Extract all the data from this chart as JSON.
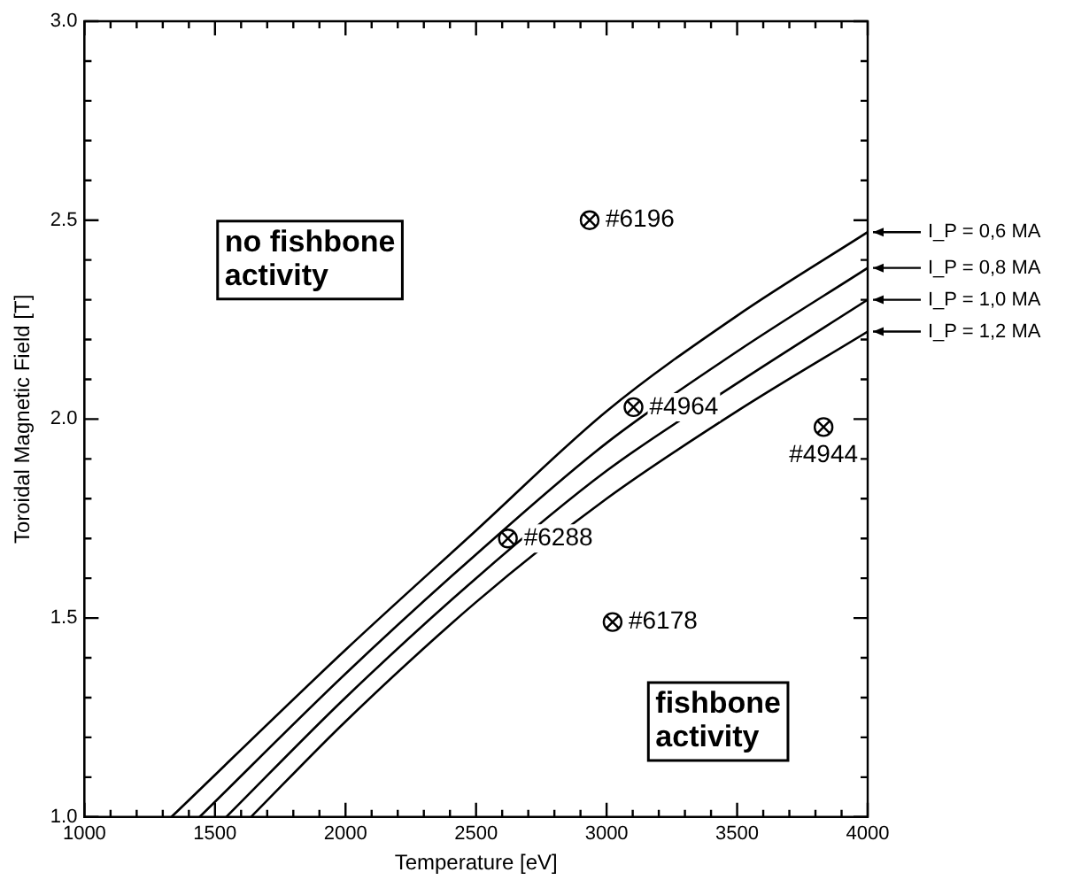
{
  "chart_data": {
    "type": "line",
    "xlabel": "Temperature [eV]",
    "ylabel": "Toroidal Magnetic Field [T]",
    "xlim": [
      1000,
      4000
    ],
    "ylim": [
      1.0,
      3.0
    ],
    "xticks": [
      1000,
      {
        "value": 1100,
        "label": null
      },
      {
        "value": 1200,
        "label": null
      },
      {
        "value": 1300,
        "label": null
      },
      {
        "value": 1400,
        "label": null
      },
      1500,
      {
        "value": 1600,
        "label": null
      },
      {
        "value": 1700,
        "label": null
      },
      {
        "value": 1800,
        "label": null
      },
      {
        "value": 1900,
        "label": null
      },
      2000,
      {
        "value": 2100,
        "label": null
      },
      {
        "value": 2200,
        "label": null
      },
      {
        "value": 2300,
        "label": null
      },
      {
        "value": 2400,
        "label": null
      },
      2500,
      {
        "value": 2600,
        "label": null
      },
      {
        "value": 2700,
        "label": null
      },
      {
        "value": 2800,
        "label": null
      },
      {
        "value": 2900,
        "label": null
      },
      3000,
      {
        "value": 3100,
        "label": null
      },
      {
        "value": 3200,
        "label": null
      },
      {
        "value": 3300,
        "label": null
      },
      {
        "value": 3400,
        "label": null
      },
      3500,
      {
        "value": 3600,
        "label": null
      },
      {
        "value": 3700,
        "label": null
      },
      {
        "value": 3800,
        "label": null
      },
      {
        "value": 3900,
        "label": null
      },
      4000
    ],
    "yticks": [
      {
        "value": 1.0,
        "label": "1.0"
      },
      {
        "value": 1.1,
        "label": null
      },
      {
        "value": 1.2,
        "label": null
      },
      {
        "value": 1.3,
        "label": null
      },
      {
        "value": 1.4,
        "label": null
      },
      {
        "value": 1.5,
        "label": "1.5"
      },
      {
        "value": 1.6,
        "label": null
      },
      {
        "value": 1.7,
        "label": null
      },
      {
        "value": 1.8,
        "label": null
      },
      {
        "value": 1.9,
        "label": null
      },
      {
        "value": 2.0,
        "label": "2.0"
      },
      {
        "value": 2.1,
        "label": null
      },
      {
        "value": 2.2,
        "label": null
      },
      {
        "value": 2.3,
        "label": null
      },
      {
        "value": 2.4,
        "label": null
      },
      {
        "value": 2.5,
        "label": "2.5"
      },
      {
        "value": 2.6,
        "label": null
      },
      {
        "value": 2.7,
        "label": null
      },
      {
        "value": 2.8,
        "label": null
      },
      {
        "value": 2.9,
        "label": null
      },
      {
        "value": 3.0,
        "label": "3.0"
      }
    ],
    "grid": false,
    "legend": "right",
    "series": [
      {
        "name": "I_P = 0,6 MA",
        "color": "#000000",
        "x": [
          1333,
          2000,
          2500,
          3000,
          3500,
          4000
        ],
        "values": [
          1.0,
          1.42,
          1.72,
          2.02,
          2.26,
          2.47
        ]
      },
      {
        "name": "I_P = 0,8 MA",
        "color": "#000000",
        "x": [
          1441,
          2000,
          2500,
          3000,
          3500,
          4000
        ],
        "values": [
          1.0,
          1.36,
          1.66,
          1.94,
          2.17,
          2.38
        ]
      },
      {
        "name": "I_P = 1,0 MA",
        "color": "#000000",
        "x": [
          1543,
          2000,
          2500,
          3000,
          3500,
          4000
        ],
        "values": [
          1.0,
          1.3,
          1.6,
          1.87,
          2.09,
          2.3
        ]
      },
      {
        "name": "I_P = 1,2 MA",
        "color": "#000000",
        "x": [
          1638,
          2000,
          2500,
          3000,
          3500,
          4000
        ],
        "values": [
          1.0,
          1.24,
          1.54,
          1.8,
          2.02,
          2.22
        ]
      },
      {
        "type": "scatter",
        "color": "#000000",
        "marker": "circle",
        "x": [
          2935,
          3103,
          3831,
          2622,
          3023
        ],
        "values": [
          2.5,
          2.03,
          1.98,
          1.7,
          1.49
        ]
      }
    ],
    "annotations": [
      "no fishbone activity",
      "fishbone activity",
      {
        "text": "#6196",
        "x": 2935,
        "y": 2.5
      },
      {
        "text": "#4964",
        "x": 3103,
        "y": 2.03
      },
      {
        "text": "#4944",
        "x": 3831,
        "y": 1.98
      },
      {
        "text": "#6288",
        "x": 2622,
        "y": 1.7
      },
      {
        "text": "#6178",
        "x": 3023,
        "y": 1.49
      }
    ]
  }
}
